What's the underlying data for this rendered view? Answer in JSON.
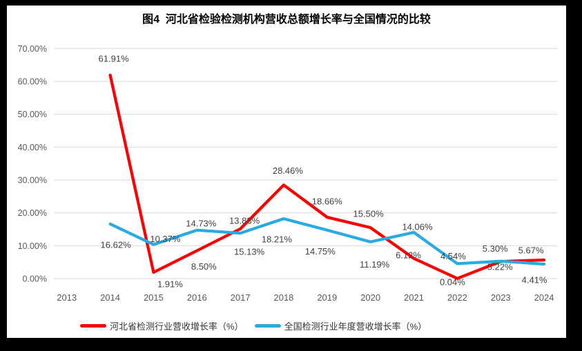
{
  "page": {
    "title": "图4  河北省检验检测机构营收总额增长率与全国情况的比较"
  },
  "chart_data": {
    "type": "line",
    "title": "图4  河北省检验检测机构营收总额增长率与全国情况的比较",
    "categories": [
      "2013",
      "2014",
      "2015",
      "2016",
      "2017",
      "2018",
      "2019",
      "2020",
      "2021",
      "2022",
      "2023",
      "2024"
    ],
    "y_axis": {
      "min": 0,
      "max": 70,
      "step": 10,
      "tick_labels": [
        "0.00%",
        "10.00%",
        "20.00%",
        "30.00%",
        "40.00%",
        "50.00%",
        "60.00%",
        "70.00%"
      ]
    },
    "grid": true,
    "legend_position": "bottom",
    "series": [
      {
        "name": "河北省检测行业营收增长率（%）",
        "color": "#FF0000",
        "start_category": "2014",
        "values": [
          61.91,
          1.91,
          8.5,
          15.13,
          28.46,
          18.66,
          15.5,
          6.12,
          0.04,
          5.22,
          5.67
        ],
        "labels": [
          "61.91%",
          "1.91%",
          "8.50%",
          "15.13%",
          "28.46%",
          "18.66%",
          "15.50%",
          "6.12%",
          "0.04%",
          "5.22%",
          "5.67%"
        ],
        "label_offsets": [
          [
            5,
            -24
          ],
          [
            24,
            17
          ],
          [
            10,
            23
          ],
          [
            13,
            33
          ],
          [
            6,
            -21
          ],
          [
            0,
            -23
          ],
          [
            -3,
            -20
          ],
          [
            -8,
            -5
          ],
          [
            -7,
            5
          ],
          [
            -1,
            8
          ],
          [
            -19,
            -14
          ]
        ]
      },
      {
        "name": "全国检测行业年度营收增长率（%）",
        "color": "#29ABE2",
        "start_category": "2014",
        "values": [
          16.62,
          10.37,
          14.73,
          13.83,
          18.21,
          14.75,
          11.19,
          14.06,
          4.54,
          5.3,
          4.41
        ],
        "labels": [
          "16.62%",
          "10.37%",
          "14.73%",
          "13.83%",
          "18.21%",
          "14.75%",
          "11.19%",
          "14.06%",
          "4.54%",
          "5.30%",
          "4.41%"
        ],
        "label_offsets": [
          [
            8,
            30
          ],
          [
            17,
            -8
          ],
          [
            6,
            -10
          ],
          [
            6,
            -18
          ],
          [
            -10,
            30
          ],
          [
            -10,
            31
          ],
          [
            6,
            33
          ],
          [
            5,
            -8
          ],
          [
            -6,
            -11
          ],
          [
            -8,
            -18
          ],
          [
            -14,
            23
          ]
        ]
      }
    ],
    "styles": {
      "grid_color": "#D9D9D9",
      "axis_text_color": "#595959",
      "label_text_color": "#404040"
    }
  }
}
